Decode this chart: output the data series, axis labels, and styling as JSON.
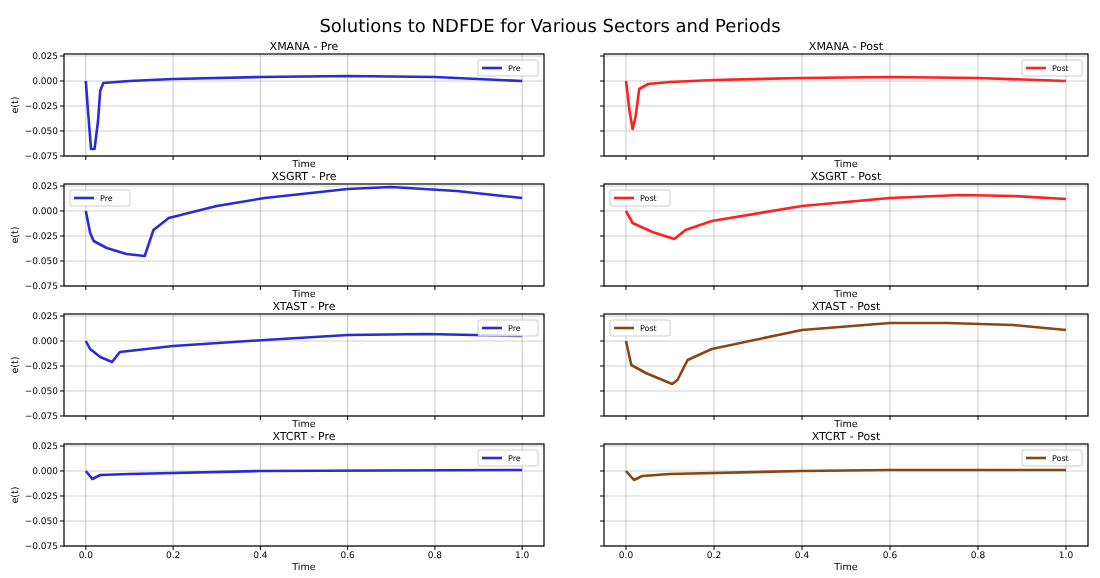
{
  "chart_data": [
    {
      "type": "line",
      "title": "XMANA - Pre",
      "xlabel": "Time",
      "ylabel": "e(t)",
      "annotations": [
        "Solutions to NDFDE for Various Sectors and Periods"
      ],
      "x": [
        0,
        0.005,
        0.012,
        0.02,
        0.028,
        0.033,
        0.04,
        0.1,
        0.2,
        0.4,
        0.6,
        0.8,
        1.0
      ],
      "series": [
        {
          "name": "Pre",
          "color": "#2b2bd6",
          "values": [
            0,
            -0.03,
            -0.068,
            -0.068,
            -0.04,
            -0.01,
            -0.002,
            0,
            0.002,
            0.004,
            0.005,
            0.004,
            0
          ]
        }
      ],
      "xlim": [
        -0.05,
        1.05
      ],
      "ylim": [
        -0.075,
        0.027
      ],
      "xticks": [
        {
          "value": 0,
          "label": null
        },
        {
          "value": 0.2,
          "label": null
        },
        {
          "value": 0.4,
          "label": null
        },
        {
          "value": 0.6,
          "label": null
        },
        {
          "value": 0.8,
          "label": null
        },
        {
          "value": 1,
          "label": null
        }
      ],
      "yticks": [
        {
          "value": 0.025,
          "label": "0.025"
        },
        {
          "value": 0,
          "label": "0.000"
        },
        {
          "value": -0.025,
          "label": "−0.025"
        },
        {
          "value": -0.05,
          "label": "−0.050"
        },
        {
          "value": -0.075,
          "label": "−0.075"
        }
      ],
      "grid": true,
      "legend": "top right",
      "tick_labels": "y"
    },
    {
      "type": "line",
      "title": "XMANA - Post",
      "xlabel": "Time",
      "x": [
        0,
        0.008,
        0.015,
        0.022,
        0.03,
        0.05,
        0.1,
        0.2,
        0.4,
        0.6,
        0.8,
        1.0
      ],
      "series": [
        {
          "name": "Post",
          "color": "#ff2020",
          "values": [
            0,
            -0.03,
            -0.048,
            -0.035,
            -0.008,
            -0.003,
            -0.001,
            0.001,
            0.003,
            0.004,
            0.003,
            0
          ]
        }
      ],
      "xlim": [
        -0.05,
        1.05
      ],
      "ylim": [
        -0.075,
        0.027
      ],
      "xticks": [
        {
          "value": 0,
          "label": null
        },
        {
          "value": 0.2,
          "label": null
        },
        {
          "value": 0.4,
          "label": null
        },
        {
          "value": 0.6,
          "label": null
        },
        {
          "value": 0.8,
          "label": null
        },
        {
          "value": 1,
          "label": null
        }
      ],
      "yticks": [
        {
          "value": 0.025,
          "label": null
        },
        {
          "value": 0,
          "label": null
        },
        {
          "value": -0.025,
          "label": null
        },
        {
          "value": -0.05,
          "label": null
        },
        {
          "value": -0.075,
          "label": null
        }
      ],
      "grid": true,
      "legend": "top right",
      "tick_labels": false
    },
    {
      "type": "line",
      "title": "XSGRT - Pre",
      "xlabel": "Time",
      "ylabel": "e(t)",
      "x": [
        0,
        0.01,
        0.018,
        0.048,
        0.093,
        0.135,
        0.155,
        0.19,
        0.3,
        0.41,
        0.6,
        0.7,
        0.85,
        1.0
      ],
      "series": [
        {
          "name": "Pre",
          "color": "#2b2bd6",
          "values": [
            0,
            -0.022,
            -0.03,
            -0.037,
            -0.043,
            -0.045,
            -0.019,
            -0.007,
            0.005,
            0.013,
            0.022,
            0.024,
            0.02,
            0.013
          ]
        }
      ],
      "xlim": [
        -0.05,
        1.05
      ],
      "ylim": [
        -0.075,
        0.027
      ],
      "xticks": [
        {
          "value": 0,
          "label": null
        },
        {
          "value": 0.2,
          "label": null
        },
        {
          "value": 0.4,
          "label": null
        },
        {
          "value": 0.6,
          "label": null
        },
        {
          "value": 0.8,
          "label": null
        },
        {
          "value": 1,
          "label": null
        }
      ],
      "yticks": [
        {
          "value": 0.025,
          "label": "0.025"
        },
        {
          "value": 0,
          "label": "0.000"
        },
        {
          "value": -0.025,
          "label": "−0.025"
        },
        {
          "value": -0.05,
          "label": "−0.050"
        },
        {
          "value": -0.075,
          "label": "−0.075"
        }
      ],
      "grid": true,
      "legend": "top left",
      "tick_labels": "y"
    },
    {
      "type": "line",
      "title": "XSGRT - Post",
      "xlabel": "Time",
      "x": [
        0,
        0.015,
        0.06,
        0.11,
        0.135,
        0.195,
        0.4,
        0.6,
        0.76,
        0.88,
        1.0
      ],
      "series": [
        {
          "name": "Post",
          "color": "#ff2020",
          "values": [
            0,
            -0.012,
            -0.021,
            -0.028,
            -0.019,
            -0.01,
            0.005,
            0.013,
            0.016,
            0.015,
            0.012
          ]
        }
      ],
      "xlim": [
        -0.05,
        1.05
      ],
      "ylim": [
        -0.075,
        0.027
      ],
      "xticks": [
        {
          "value": 0,
          "label": null
        },
        {
          "value": 0.2,
          "label": null
        },
        {
          "value": 0.4,
          "label": null
        },
        {
          "value": 0.6,
          "label": null
        },
        {
          "value": 0.8,
          "label": null
        },
        {
          "value": 1,
          "label": null
        }
      ],
      "yticks": [
        {
          "value": 0.025,
          "label": null
        },
        {
          "value": 0,
          "label": null
        },
        {
          "value": -0.025,
          "label": null
        },
        {
          "value": -0.05,
          "label": null
        },
        {
          "value": -0.075,
          "label": null
        }
      ],
      "grid": true,
      "legend": "top left",
      "tick_labels": false
    },
    {
      "type": "line",
      "title": "XTAST - Pre",
      "xlabel": "Time",
      "ylabel": "e(t)",
      "x": [
        0,
        0.01,
        0.033,
        0.06,
        0.078,
        0.2,
        0.41,
        0.6,
        0.78,
        1.0
      ],
      "series": [
        {
          "name": "Pre",
          "color": "#2b2bd6",
          "values": [
            0,
            -0.008,
            -0.016,
            -0.021,
            -0.011,
            -0.005,
            0.001,
            0.006,
            0.007,
            0.005
          ]
        }
      ],
      "xlim": [
        -0.05,
        1.05
      ],
      "ylim": [
        -0.075,
        0.027
      ],
      "xticks": [
        {
          "value": 0,
          "label": null
        },
        {
          "value": 0.2,
          "label": null
        },
        {
          "value": 0.4,
          "label": null
        },
        {
          "value": 0.6,
          "label": null
        },
        {
          "value": 0.8,
          "label": null
        },
        {
          "value": 1,
          "label": null
        }
      ],
      "yticks": [
        {
          "value": 0.025,
          "label": "0.025"
        },
        {
          "value": 0,
          "label": "0.000"
        },
        {
          "value": -0.025,
          "label": "−0.025"
        },
        {
          "value": -0.05,
          "label": "−0.050"
        },
        {
          "value": -0.075,
          "label": "−0.075"
        }
      ],
      "grid": true,
      "legend": "top right",
      "tick_labels": "y"
    },
    {
      "type": "line",
      "title": "XTAST - Post",
      "xlabel": "Time",
      "x": [
        0,
        0.012,
        0.045,
        0.105,
        0.117,
        0.14,
        0.195,
        0.4,
        0.6,
        0.73,
        0.88,
        1.0
      ],
      "series": [
        {
          "name": "Post",
          "color": "#8b4513",
          "values": [
            0,
            -0.024,
            -0.032,
            -0.043,
            -0.039,
            -0.019,
            -0.008,
            0.011,
            0.018,
            0.018,
            0.016,
            0.011
          ]
        }
      ],
      "xlim": [
        -0.05,
        1.05
      ],
      "ylim": [
        -0.075,
        0.027
      ],
      "xticks": [
        {
          "value": 0,
          "label": null
        },
        {
          "value": 0.2,
          "label": null
        },
        {
          "value": 0.4,
          "label": null
        },
        {
          "value": 0.6,
          "label": null
        },
        {
          "value": 0.8,
          "label": null
        },
        {
          "value": 1,
          "label": null
        }
      ],
      "yticks": [
        {
          "value": 0.025,
          "label": null
        },
        {
          "value": 0,
          "label": null
        },
        {
          "value": -0.025,
          "label": null
        },
        {
          "value": -0.05,
          "label": null
        },
        {
          "value": -0.075,
          "label": null
        }
      ],
      "grid": true,
      "legend": "top left",
      "tick_labels": false
    },
    {
      "type": "line",
      "title": "XTCRT - Pre",
      "xlabel": "Time",
      "ylabel": "e(t)",
      "x": [
        0,
        0.015,
        0.033,
        0.1,
        0.4,
        1.0
      ],
      "series": [
        {
          "name": "Pre",
          "color": "#2b2bd6",
          "values": [
            0,
            -0.008,
            -0.004,
            -0.003,
            0,
            0.001
          ]
        }
      ],
      "xlim": [
        -0.05,
        1.05
      ],
      "ylim": [
        -0.075,
        0.027
      ],
      "xticks": [
        {
          "value": 0,
          "label": "0.0"
        },
        {
          "value": 0.2,
          "label": "0.2"
        },
        {
          "value": 0.4,
          "label": "0.4"
        },
        {
          "value": 0.6,
          "label": "0.6"
        },
        {
          "value": 0.8,
          "label": "0.8"
        },
        {
          "value": 1,
          "label": "1.0"
        }
      ],
      "yticks": [
        {
          "value": 0.025,
          "label": "0.025"
        },
        {
          "value": 0,
          "label": "0.000"
        },
        {
          "value": -0.025,
          "label": "−0.025"
        },
        {
          "value": -0.05,
          "label": "−0.050"
        },
        {
          "value": -0.075,
          "label": "−0.075"
        }
      ],
      "grid": true,
      "legend": "top right"
    },
    {
      "type": "line",
      "title": "XTCRT - Post",
      "xlabel": "Time",
      "x": [
        0,
        0.018,
        0.037,
        0.1,
        0.4,
        0.6,
        1.0
      ],
      "series": [
        {
          "name": "Post",
          "color": "#8b4513",
          "values": [
            0,
            -0.009,
            -0.005,
            -0.003,
            0,
            0.001,
            0.001
          ]
        }
      ],
      "xlim": [
        -0.05,
        1.05
      ],
      "ylim": [
        -0.075,
        0.027
      ],
      "xticks": [
        {
          "value": 0,
          "label": "0.0"
        },
        {
          "value": 0.2,
          "label": "0.2"
        },
        {
          "value": 0.4,
          "label": "0.4"
        },
        {
          "value": 0.6,
          "label": "0.6"
        },
        {
          "value": 0.8,
          "label": "0.8"
        },
        {
          "value": 1,
          "label": "1.0"
        }
      ],
      "yticks": [
        {
          "value": 0.025,
          "label": null
        },
        {
          "value": 0,
          "label": null
        },
        {
          "value": -0.025,
          "label": null
        },
        {
          "value": -0.05,
          "label": null
        },
        {
          "value": -0.075,
          "label": null
        }
      ],
      "grid": true,
      "legend": "top right",
      "tick_labels": "x"
    }
  ]
}
